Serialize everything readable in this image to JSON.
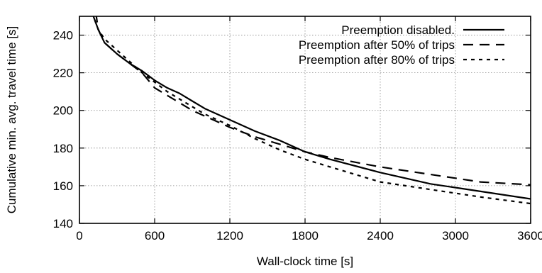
{
  "chart_data": {
    "type": "line",
    "title": "",
    "xlabel": "Wall-clock time [s]",
    "ylabel": "Cumulative min. avg. travel time [s]",
    "xlim": [
      0,
      3600
    ],
    "ylim": [
      140,
      250
    ],
    "xticks": [
      0,
      600,
      1200,
      1800,
      2400,
      3000,
      3600
    ],
    "yticks": [
      140,
      160,
      180,
      200,
      220,
      240
    ],
    "grid": true,
    "legend_position": "top-right",
    "series": [
      {
        "name": "Preemption disabled.",
        "dash": "solid",
        "x": [
          100,
          150,
          200,
          300,
          400,
          500,
          600,
          700,
          800,
          900,
          1000,
          1200,
          1400,
          1600,
          1800,
          2000,
          2400,
          2800,
          3200,
          3600
        ],
        "y": [
          252,
          243,
          236,
          230,
          225,
          221,
          216,
          212,
          209,
          205,
          201,
          195,
          189,
          184,
          178,
          174,
          167,
          161,
          157,
          153
        ]
      },
      {
        "name": "Preemption after 50% of trips",
        "dash": "long-dash",
        "x": [
          130,
          150,
          200,
          300,
          400,
          500,
          600,
          700,
          800,
          900,
          1000,
          1200,
          1400,
          1600,
          1800,
          2000,
          2400,
          2800,
          3200,
          3600
        ],
        "y": [
          252,
          243,
          236,
          230,
          225,
          220,
          212,
          208,
          204,
          200,
          197,
          191,
          186,
          182,
          178,
          175,
          170,
          166,
          162,
          160.5
        ]
      },
      {
        "name": "Preemption after 80% of trips",
        "dash": "short-dash",
        "x": [
          100,
          150,
          200,
          300,
          400,
          500,
          600,
          700,
          800,
          900,
          1000,
          1200,
          1400,
          1600,
          1800,
          2000,
          2400,
          2800,
          3200,
          3600
        ],
        "y": [
          252,
          243,
          238,
          232,
          226,
          220,
          215,
          210,
          206,
          202,
          198,
          192,
          185,
          179,
          174,
          170,
          162,
          158,
          154,
          150.5
        ]
      }
    ]
  }
}
